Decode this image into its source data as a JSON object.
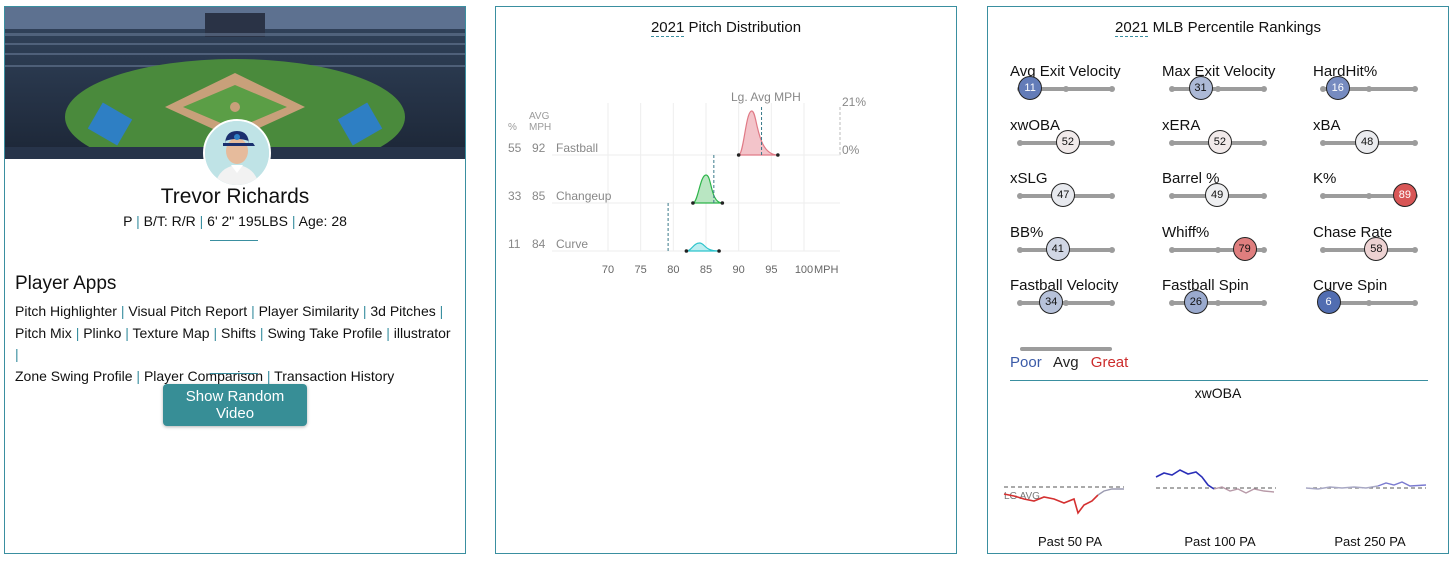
{
  "player": {
    "name": "Trevor Richards",
    "position": "P",
    "bat_throw": "B/T: R/R",
    "height_weight": "6' 2\" 195LBS",
    "age": "Age: 28",
    "apps_title": "Player Apps",
    "apps": [
      "Pitch Highlighter",
      "Visual Pitch Report",
      "Player Similarity",
      "3d Pitches",
      "Pitch Mix",
      "Plinko",
      "Texture Map",
      "Shifts",
      "Swing Take Profile",
      "illustrator",
      "Zone Swing Profile",
      "Player Comparison",
      "Transaction History"
    ],
    "show_video_label": "Show Random Video"
  },
  "pitch_distribution": {
    "title_year": "2021",
    "title_rest": "Pitch Distribution",
    "col_pct": "%",
    "col_avg": "AVG",
    "col_mph": "MPH",
    "lg_avg_label": "Lg. Avg MPH",
    "max_label": "21%",
    "zero_label": "0%",
    "xlabel_unit": "MPH",
    "pitches": [
      {
        "pct": "55",
        "mph": "92",
        "name": "Fastball",
        "color": "#e07a86",
        "fill": "#f3c4ca",
        "lg_avg": 93.5,
        "min": 90,
        "max": 96
      },
      {
        "pct": "33",
        "mph": "85",
        "name": "Changeup",
        "color": "#2db44a",
        "fill": "#b9e6c2",
        "lg_avg": 86.2,
        "min": 83,
        "max": 87.5
      },
      {
        "pct": "11",
        "mph": "84",
        "name": "Curve",
        "color": "#2ec4cc",
        "fill": "#bdeef0",
        "lg_avg": 79.2,
        "min": 82,
        "max": 87
      }
    ],
    "x_ticks": [
      "70",
      "75",
      "80",
      "85",
      "90",
      "95",
      "100"
    ]
  },
  "percentile": {
    "title_year": "2021",
    "title_rest": "MLB Percentile Rankings",
    "colors": {
      "poor": "#3b5ba8",
      "avg": "#222222",
      "great": "#cc2b2b"
    },
    "stats": [
      {
        "label": "Avg Exit Velocity",
        "value": "11"
      },
      {
        "label": "Max Exit Velocity",
        "value": "31"
      },
      {
        "label": "HardHit%",
        "value": "16"
      },
      {
        "label": "xwOBA",
        "value": "52"
      },
      {
        "label": "xERA",
        "value": "52"
      },
      {
        "label": "xBA",
        "value": "48"
      },
      {
        "label": "xSLG",
        "value": "47"
      },
      {
        "label": "Barrel %",
        "value": "49"
      },
      {
        "label": "K%",
        "value": "89"
      },
      {
        "label": "BB%",
        "value": "41"
      },
      {
        "label": "Whiff%",
        "value": "79"
      },
      {
        "label": "Chase Rate",
        "value": "58"
      },
      {
        "label": "Fastball Velocity",
        "value": "34"
      },
      {
        "label": "Fastball Spin",
        "value": "26"
      },
      {
        "label": "Curve Spin",
        "value": "6"
      }
    ],
    "legend": {
      "poor": "Poor",
      "avg": "Avg",
      "great": "Great"
    },
    "xwoba_title": "xwOBA",
    "lg_avg_label": "LG AVG",
    "past_labels": [
      "Past 50 PA",
      "Past 100 PA",
      "Past 250 PA"
    ]
  }
}
